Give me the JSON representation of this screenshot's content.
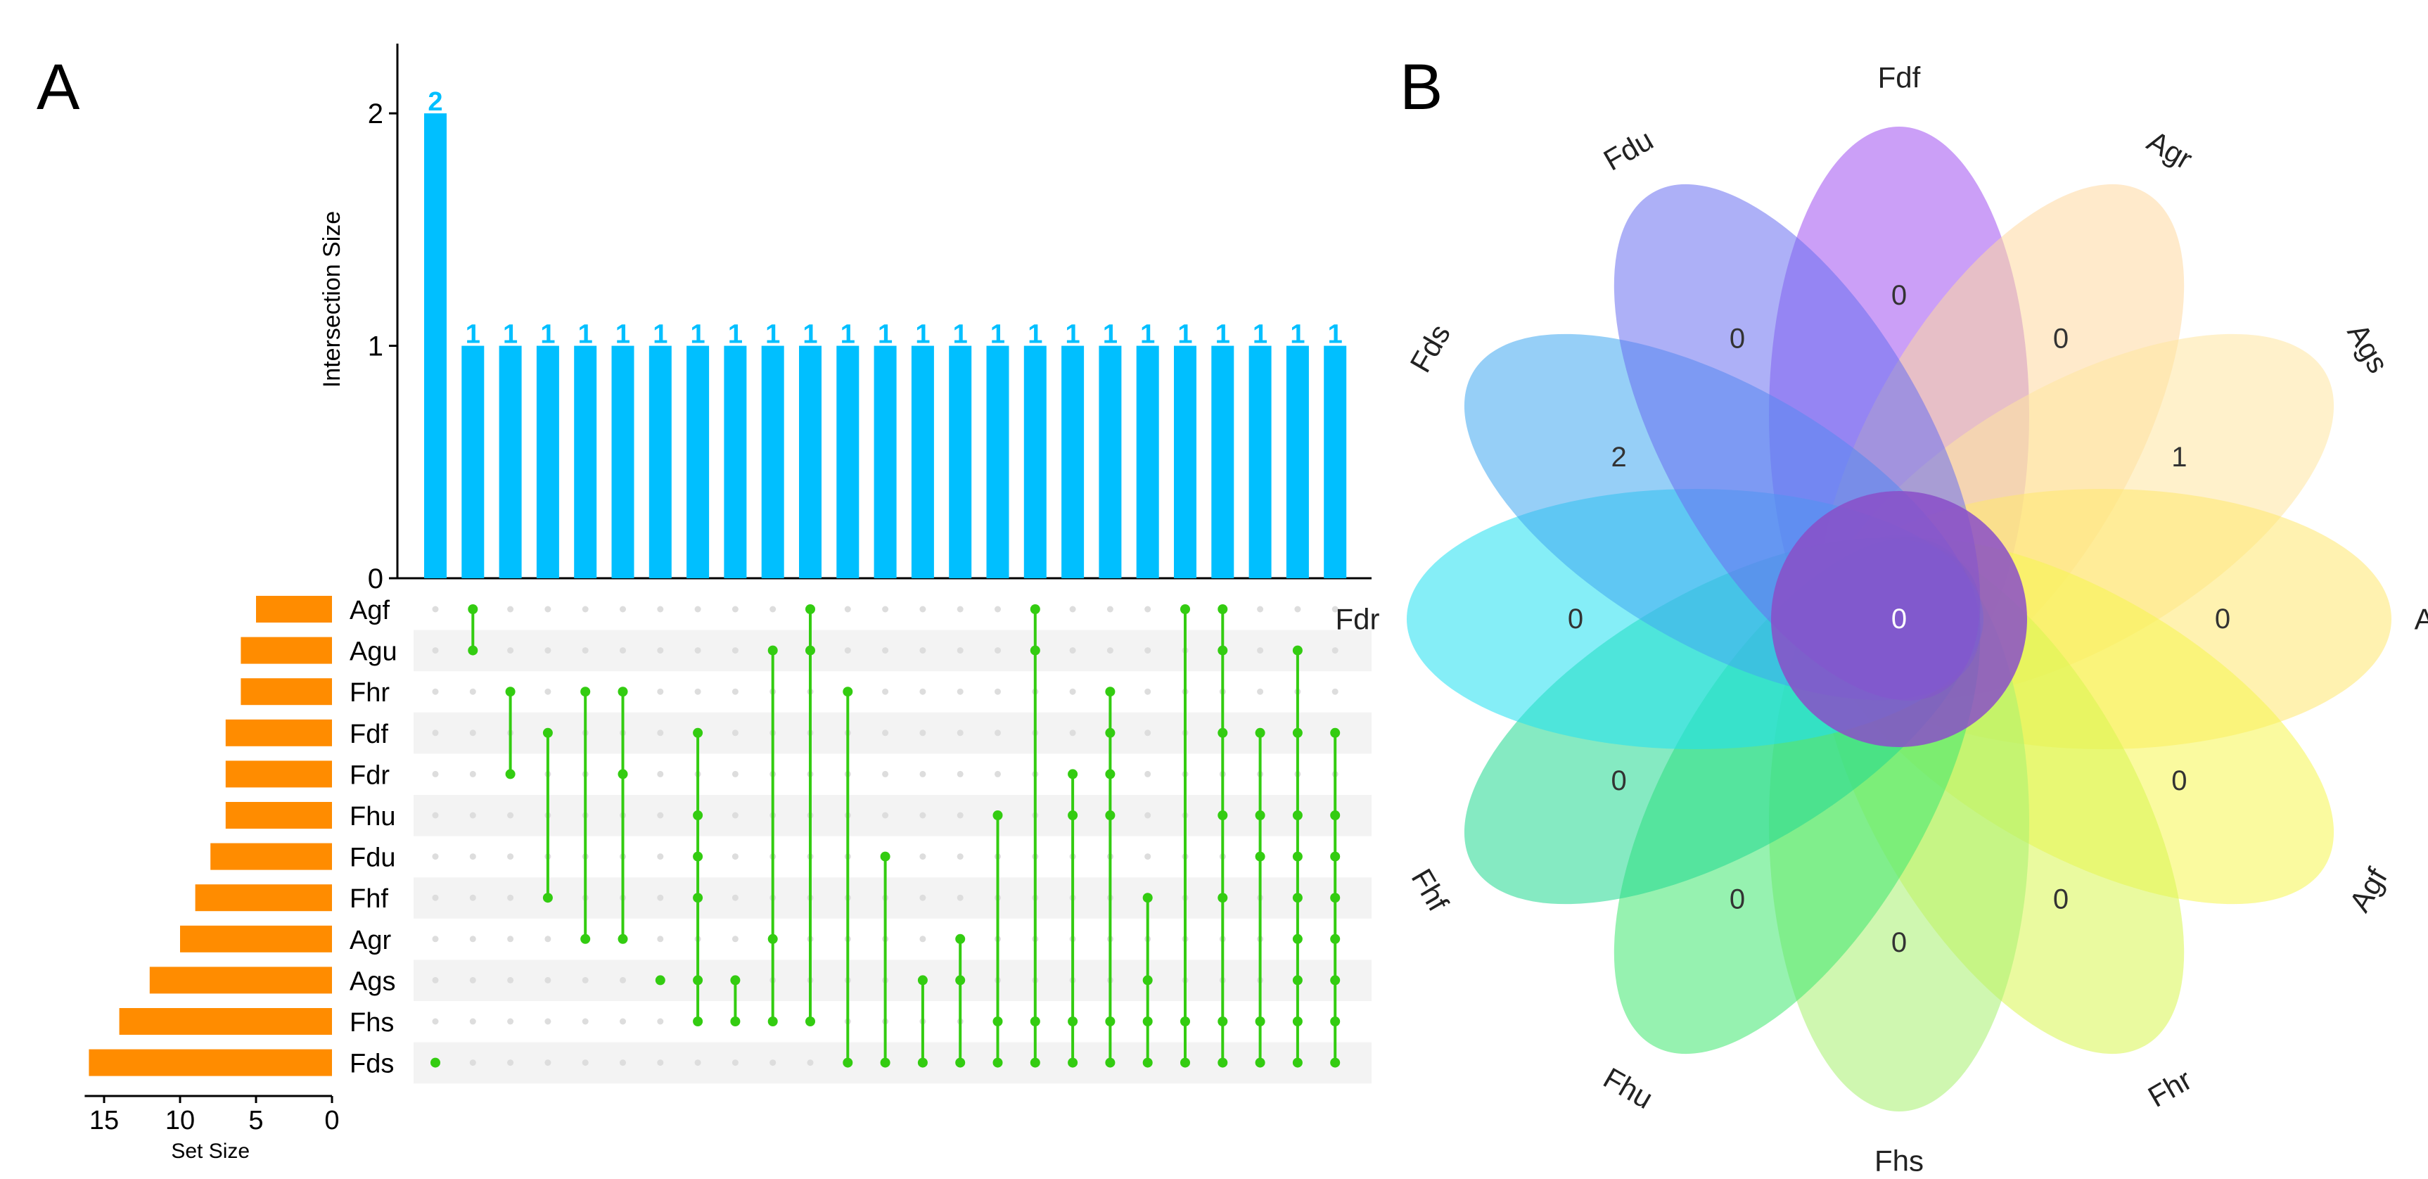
{
  "panels": {
    "a_label": "A",
    "b_label": "B"
  },
  "chart_data": [
    {
      "type": "bar",
      "panel": "A",
      "ylabel": "Intersection Size",
      "ylim": [
        0,
        2.3
      ],
      "yticks": [
        0,
        1,
        2
      ],
      "bar_color": "#00BFFF",
      "values": [
        2,
        1,
        1,
        1,
        1,
        1,
        1,
        1,
        1,
        1,
        1,
        1,
        1,
        1,
        1,
        1,
        1,
        1,
        1,
        1,
        1,
        1,
        1,
        1,
        1
      ],
      "set_size": {
        "xlabel": "Set Size",
        "xticks": [
          15,
          10,
          5,
          0
        ],
        "xlim": [
          0,
          16
        ],
        "bar_color": "#FF8C00",
        "sets": [
          "Agf",
          "Agu",
          "Fhr",
          "Fdf",
          "Fdr",
          "Fhu",
          "Fdu",
          "Fhf",
          "Agr",
          "Ags",
          "Fhs",
          "Fds"
        ],
        "values": [
          5,
          6,
          6,
          7,
          7,
          7,
          8,
          9,
          10,
          12,
          14,
          16
        ]
      },
      "matrix": {
        "dot_color": "#33CC11",
        "empty_color": "#DDDDDD",
        "columns": [
          [
            "Fds"
          ],
          [
            "Agf",
            "Agu"
          ],
          [
            "Fhr",
            "Fdr"
          ],
          [
            "Fdf",
            "Fhf"
          ],
          [
            "Fhr",
            "Agr"
          ],
          [
            "Fhr",
            "Fdr",
            "Agr"
          ],
          [
            "Ags"
          ],
          [
            "Fdf",
            "Fhu",
            "Fdu",
            "Fhf",
            "Ags",
            "Fhs"
          ],
          [
            "Ags",
            "Fhs"
          ],
          [
            "Agu",
            "Agr",
            "Fhs"
          ],
          [
            "Agf",
            "Agu",
            "Fhs"
          ],
          [
            "Fhr",
            "Fds"
          ],
          [
            "Fdu",
            "Fds"
          ],
          [
            "Ags",
            "Fds"
          ],
          [
            "Agr",
            "Ags",
            "Fds"
          ],
          [
            "Fhu",
            "Fhs",
            "Fds"
          ],
          [
            "Agf",
            "Agu",
            "Fhs",
            "Fds"
          ],
          [
            "Fdr",
            "Fhu",
            "Fhs",
            "Fds"
          ],
          [
            "Fhr",
            "Fdf",
            "Fdr",
            "Fhu",
            "Fhs",
            "Fds"
          ],
          [
            "Fhf",
            "Ags",
            "Fhs",
            "Fds"
          ],
          [
            "Agf",
            "Fhs",
            "Fds"
          ],
          [
            "Agf",
            "Agu",
            "Fdf",
            "Fhu",
            "Fhf",
            "Fhs",
            "Fds"
          ],
          [
            "Fdf",
            "Fhu",
            "Fdu",
            "Fhs",
            "Fds"
          ],
          [
            "Agu",
            "Fdf",
            "Fhu",
            "Fdu",
            "Fhf",
            "Agr",
            "Ags",
            "Fhs",
            "Fds"
          ],
          [
            "Fdf",
            "Fhu",
            "Fdu",
            "Fhf",
            "Agr",
            "Ags",
            "Fhs",
            "Fds"
          ]
        ]
      }
    },
    {
      "type": "venn",
      "panel": "B",
      "center_value": "0",
      "center_color": "#8A4FC8",
      "petals": [
        {
          "name": "Fdf",
          "value": "0",
          "color": "#A050F0"
        },
        {
          "name": "Agr",
          "value": "0",
          "color": "#FFD9A0"
        },
        {
          "name": "Ags",
          "value": "1",
          "color": "#FFE6A0"
        },
        {
          "name": "Agu",
          "value": "0",
          "color": "#FFE870"
        },
        {
          "name": "Agf",
          "value": "0",
          "color": "#F5F550"
        },
        {
          "name": "Fhr",
          "value": "0",
          "color": "#D8F550"
        },
        {
          "name": "Fhs",
          "value": "0",
          "color": "#A8F070"
        },
        {
          "name": "Fhu",
          "value": "0",
          "color": "#40E870"
        },
        {
          "name": "Fhf",
          "value": "0",
          "color": "#20D890"
        },
        {
          "name": "Fdr",
          "value": "0",
          "color": "#20E0F0"
        },
        {
          "name": "Fds",
          "value": "2",
          "color": "#40A8F0"
        },
        {
          "name": "Fdu",
          "value": "0",
          "color": "#6A70F0"
        }
      ]
    }
  ]
}
